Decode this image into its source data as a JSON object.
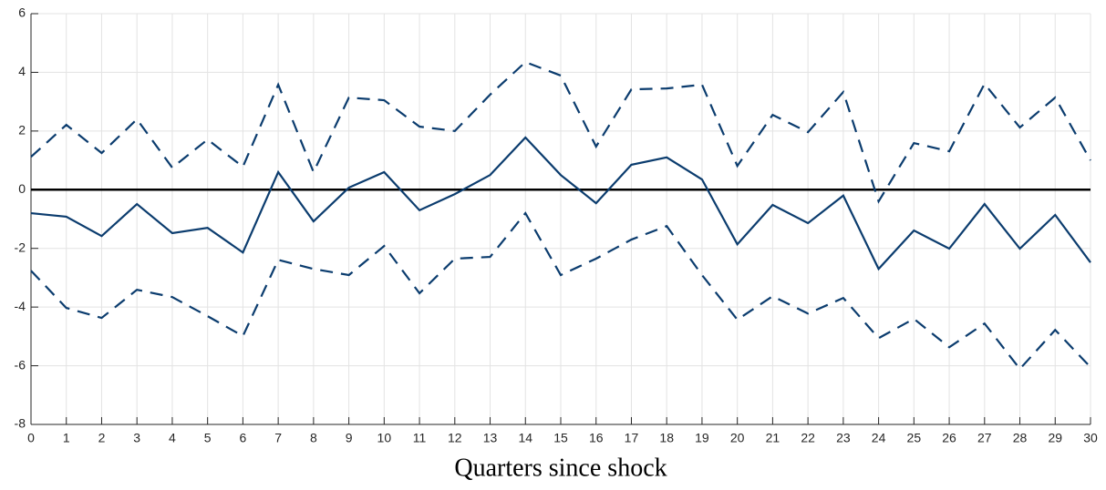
{
  "chart_data": {
    "type": "line",
    "xlabel": "Quarters since shock",
    "x": [
      0,
      1,
      2,
      3,
      4,
      5,
      6,
      7,
      8,
      9,
      10,
      11,
      12,
      13,
      14,
      15,
      16,
      17,
      18,
      19,
      20,
      21,
      22,
      23,
      24,
      25,
      26,
      27,
      28,
      29,
      30
    ],
    "series": [
      {
        "color": "#0b3c6e",
        "style": "solid",
        "values": [
          -0.8,
          -0.92,
          -1.58,
          -0.49,
          -1.48,
          -1.3,
          -2.14,
          0.6,
          -1.08,
          0.07,
          0.6,
          -0.7,
          -0.15,
          0.5,
          1.78,
          0.5,
          -0.46,
          0.85,
          1.1,
          0.35,
          -1.86,
          -0.52,
          -1.14,
          -0.2,
          -2.7,
          -1.39,
          -2.01,
          -0.49,
          -2.01,
          -0.86,
          -2.48
        ]
      },
      {
        "color": "#0b3c6e",
        "style": "dashed",
        "values": [
          1.12,
          2.21,
          1.25,
          2.4,
          0.75,
          1.71,
          0.78,
          3.58,
          0.6,
          3.14,
          3.05,
          2.15,
          2.0,
          3.24,
          4.35,
          3.89,
          1.47,
          3.42,
          3.45,
          3.58,
          0.81,
          2.55,
          1.96,
          3.33,
          -0.4,
          1.59,
          1.31,
          3.61,
          2.12,
          3.14,
          1.0
        ]
      },
      {
        "color": "#0b3c6e",
        "style": "dashed",
        "values": [
          -2.76,
          -4.03,
          -4.37,
          -3.41,
          -3.66,
          -4.31,
          -4.99,
          -2.39,
          -2.7,
          -2.91,
          -1.92,
          -3.53,
          -2.35,
          -2.29,
          -0.8,
          -2.91,
          -2.35,
          -1.7,
          -1.24,
          -2.91,
          -4.43,
          -3.63,
          -4.22,
          -3.69,
          -5.06,
          -4.4,
          -5.37,
          -4.56,
          -6.11,
          -4.78,
          -6.05
        ]
      }
    ],
    "reference_line": 0,
    "reference_color": "#000000",
    "xlim": [
      0,
      30
    ],
    "xticks": [
      0,
      1,
      2,
      3,
      4,
      5,
      6,
      7,
      8,
      9,
      10,
      11,
      12,
      13,
      14,
      15,
      16,
      17,
      18,
      19,
      20,
      21,
      22,
      23,
      24,
      25,
      26,
      27,
      28,
      29,
      30
    ],
    "ylim": [
      -8,
      6
    ],
    "yticks": [
      -8,
      -6,
      -4,
      -2,
      0,
      2,
      4,
      6
    ],
    "grid": true
  }
}
